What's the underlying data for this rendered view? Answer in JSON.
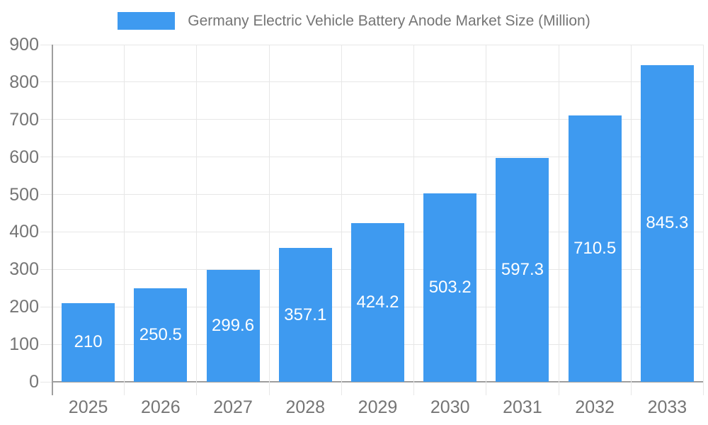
{
  "legend": {
    "label": "Germany Electric Vehicle Battery Anode Market Size (Million)"
  },
  "colors": {
    "bar": "#3e9af0",
    "grid": "#e7e7e7",
    "axis_line": "#9e9e9e",
    "tick_label": "#757575",
    "title": "#757575",
    "value_label": "#ffffff",
    "background": "#ffffff"
  },
  "chart_data": {
    "type": "bar",
    "title": "Germany Electric Vehicle Battery Anode Market Size (Million)",
    "categories": [
      "2025",
      "2026",
      "2027",
      "2028",
      "2029",
      "2030",
      "2031",
      "2032",
      "2033"
    ],
    "values": [
      210,
      250.5,
      299.6,
      357.1,
      424.2,
      503.2,
      597.3,
      710.5,
      845.3
    ],
    "value_labels": [
      "210",
      "250.5",
      "299.6",
      "357.1",
      "424.2",
      "503.2",
      "597.3",
      "710.5",
      "845.3"
    ],
    "yticks": [
      0,
      100,
      200,
      300,
      400,
      500,
      600,
      700,
      800,
      900
    ],
    "ylim": [
      0,
      900
    ],
    "xlabel": "",
    "ylabel": "",
    "grid": true,
    "legend_position": "top-center",
    "value_label_position": "inside-center"
  }
}
